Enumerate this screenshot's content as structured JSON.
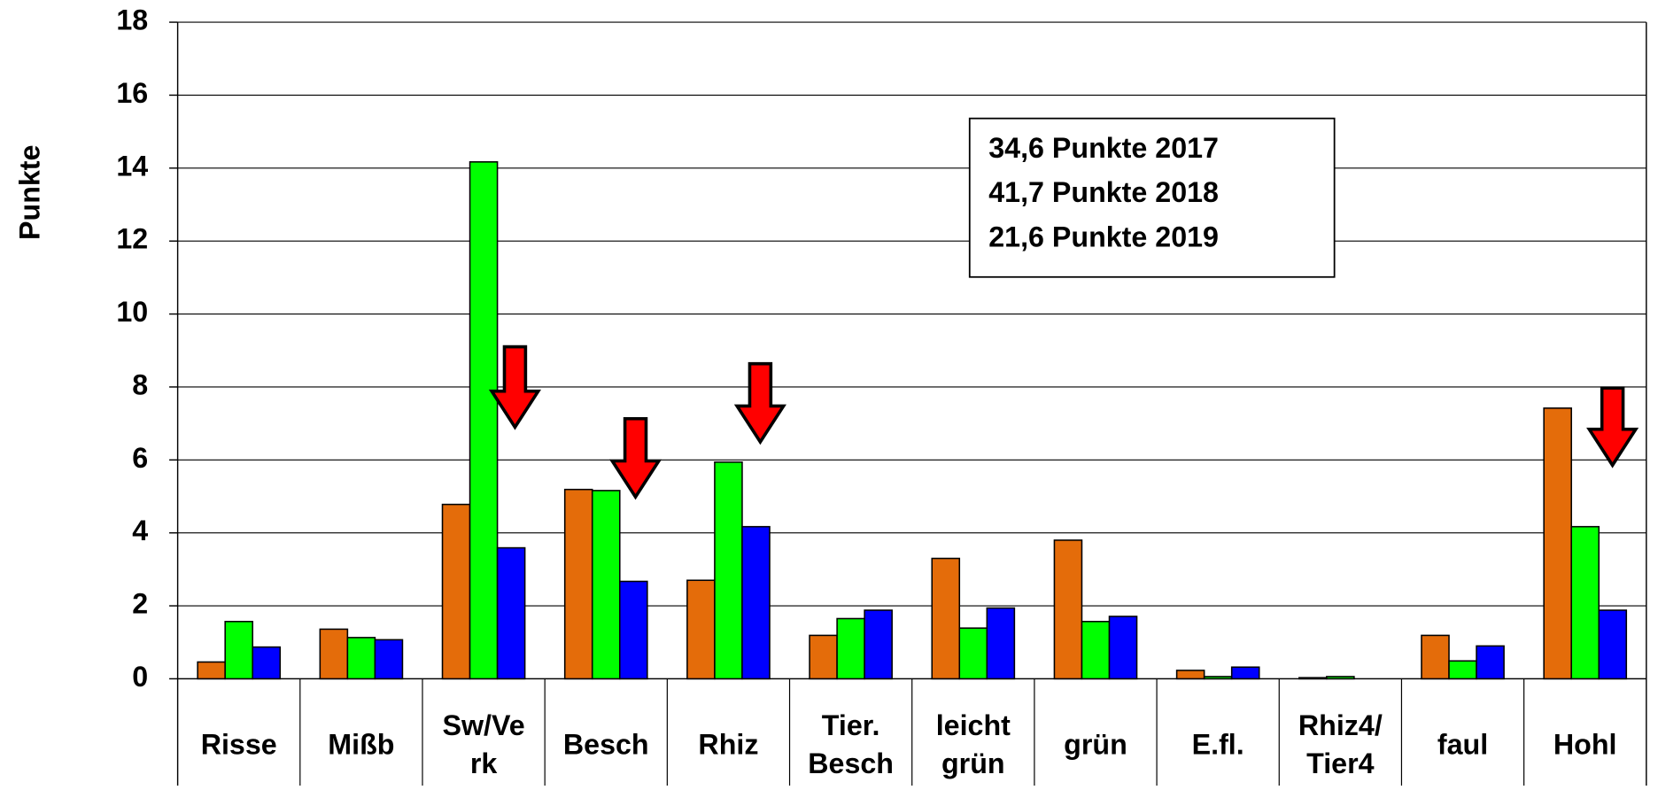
{
  "chart_data": {
    "type": "bar",
    "ylabel": "Punkte",
    "categories": [
      [
        "Risse"
      ],
      [
        "Mißb"
      ],
      [
        "Sw/Ve",
        "rk"
      ],
      [
        "Besch"
      ],
      [
        "Rhiz"
      ],
      [
        "Tier.",
        "Besch"
      ],
      [
        "leicht",
        "grün"
      ],
      [
        "grün"
      ],
      [
        "E.fl."
      ],
      [
        "Rhiz4/",
        "Tier4"
      ],
      [
        "faul"
      ],
      [
        "Hohl"
      ]
    ],
    "series": [
      {
        "color": "#e46c0a",
        "values": [
          0.46,
          1.36,
          4.78,
          5.19,
          2.7,
          1.19,
          3.3,
          3.8,
          0.23,
          0.03,
          1.19,
          7.42
        ]
      },
      {
        "color": "#00ff00",
        "values": [
          1.57,
          1.13,
          14.17,
          5.16,
          5.94,
          1.65,
          1.39,
          1.57,
          0.06,
          0.06,
          0.49,
          4.17
        ]
      },
      {
        "color": "#0000ff",
        "values": [
          0.87,
          1.07,
          3.59,
          2.67,
          4.17,
          1.88,
          1.94,
          1.71,
          0.32,
          0,
          0.9,
          1.88
        ]
      }
    ],
    "annotation": [
      "34,6 Punkte 2017",
      "41,7 Punkte 2018",
      "21,6 Punkte 2019"
    ],
    "ylim": [
      0,
      18
    ],
    "yticks": [
      0,
      2,
      4,
      6,
      8,
      10,
      12,
      14,
      16,
      18
    ],
    "grid": true
  }
}
